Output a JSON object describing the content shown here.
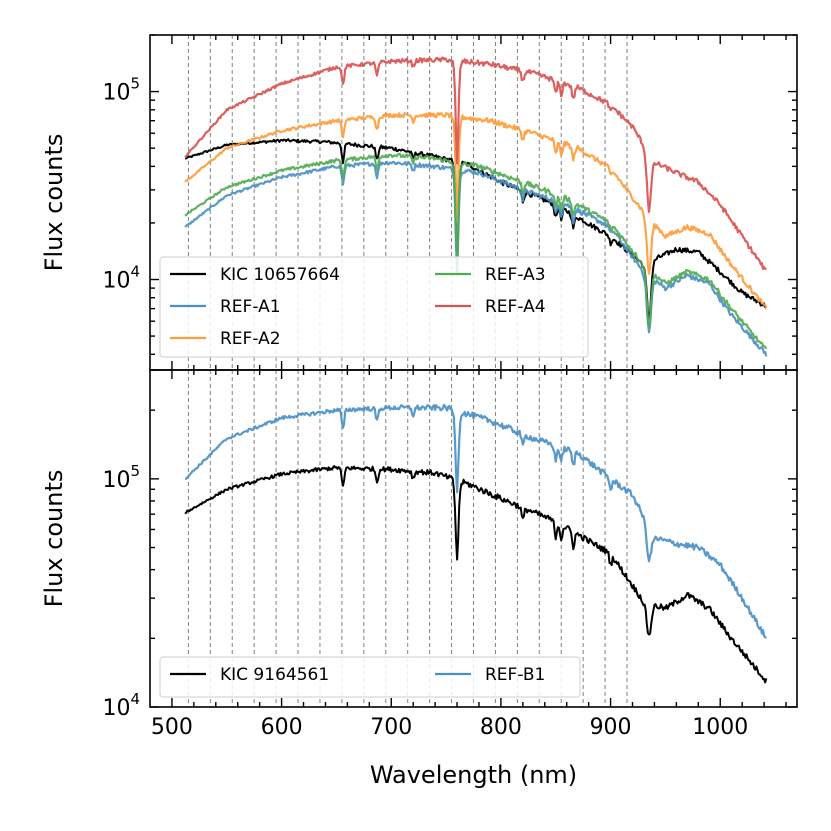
{
  "chart_data": [
    {
      "type": "line",
      "panel": "top",
      "xlabel": "",
      "ylabel": "Flux counts",
      "xlim": [
        480,
        1070
      ],
      "ylim": [
        3300,
        200000
      ],
      "yscale": "log",
      "x_ticks": [],
      "y_tick_labels": [
        {
          "value": 10000,
          "base": "10",
          "exp": "4"
        },
        {
          "value": 100000,
          "base": "10",
          "exp": "5"
        }
      ],
      "vlines": [
        515,
        535,
        555,
        575,
        595,
        615,
        635,
        655,
        675,
        695,
        715,
        735,
        755,
        775,
        795,
        815,
        835,
        855,
        875,
        895,
        915
      ],
      "legend_position": "lower-left",
      "legend_columns": 2,
      "series": [
        {
          "name": "KIC 10657664",
          "color": "#000000",
          "profile": [
            [
              512,
              44000
            ],
            [
              550,
              52000
            ],
            [
              600,
              55000
            ],
            [
              640,
              54000
            ],
            [
              700,
              50000
            ],
            [
              740,
              45000
            ],
            [
              770,
              41000
            ],
            [
              800,
              33000
            ],
            [
              850,
              25000
            ],
            [
              900,
              17000
            ],
            [
              930,
              12000
            ],
            [
              960,
              14500
            ],
            [
              980,
              14000
            ],
            [
              1000,
              11000
            ],
            [
              1020,
              8500
            ],
            [
              1042,
              7200
            ]
          ]
        },
        {
          "name": "REF-A1",
          "color": "#4a90c4",
          "profile": [
            [
              512,
              19000
            ],
            [
              550,
              28000
            ],
            [
              600,
              35000
            ],
            [
              650,
              40000
            ],
            [
              700,
              42000
            ],
            [
              740,
              40000
            ],
            [
              780,
              37000
            ],
            [
              820,
              30000
            ],
            [
              860,
              25000
            ],
            [
              900,
              19000
            ],
            [
              930,
              11000
            ],
            [
              950,
              9000
            ],
            [
              970,
              10500
            ],
            [
              990,
              9500
            ],
            [
              1010,
              6500
            ],
            [
              1042,
              4000
            ]
          ]
        },
        {
          "name": "REF-A2",
          "color": "#ff9c3a",
          "profile": [
            [
              512,
              33000
            ],
            [
              550,
              50000
            ],
            [
              600,
              62000
            ],
            [
              650,
              70000
            ],
            [
              700,
              75000
            ],
            [
              750,
              75000
            ],
            [
              790,
              70000
            ],
            [
              830,
              60000
            ],
            [
              870,
              50000
            ],
            [
              900,
              39000
            ],
            [
              930,
              23000
            ],
            [
              950,
              17000
            ],
            [
              970,
              19000
            ],
            [
              990,
              17500
            ],
            [
              1010,
              12000
            ],
            [
              1042,
              7000
            ]
          ]
        },
        {
          "name": "REF-A3",
          "color": "#52ab52",
          "profile": [
            [
              512,
              22000
            ],
            [
              550,
              31000
            ],
            [
              600,
              38000
            ],
            [
              650,
              43000
            ],
            [
              700,
              46000
            ],
            [
              740,
              44000
            ],
            [
              780,
              40000
            ],
            [
              820,
              33000
            ],
            [
              860,
              27000
            ],
            [
              900,
              20000
            ],
            [
              930,
              12000
            ],
            [
              950,
              9500
            ],
            [
              970,
              11000
            ],
            [
              990,
              10000
            ],
            [
              1010,
              7000
            ],
            [
              1042,
              4200
            ]
          ]
        },
        {
          "name": "REF-A4",
          "color": "#d9534f",
          "profile": [
            [
              512,
              45000
            ],
            [
              550,
              80000
            ],
            [
              600,
              110000
            ],
            [
              650,
              135000
            ],
            [
              700,
              145000
            ],
            [
              750,
              148000
            ],
            [
              790,
              140000
            ],
            [
              830,
              125000
            ],
            [
              870,
              105000
            ],
            [
              900,
              85000
            ],
            [
              920,
              65000
            ],
            [
              940,
              42000
            ],
            [
              960,
              37000
            ],
            [
              980,
              33000
            ],
            [
              1000,
              25000
            ],
            [
              1020,
              17000
            ],
            [
              1042,
              11000
            ]
          ]
        }
      ],
      "absorption_lines": [
        [
          656,
          0.8
        ],
        [
          687,
          0.85
        ],
        [
          720,
          0.93
        ],
        [
          760,
          0.28
        ],
        [
          820,
          0.88
        ],
        [
          850,
          0.85
        ],
        [
          855,
          0.86
        ],
        [
          866,
          0.85
        ],
        [
          900,
          0.92
        ],
        [
          935,
          0.5
        ]
      ]
    },
    {
      "type": "line",
      "panel": "bottom",
      "xlabel": "Wavelength (nm)",
      "ylabel": "Flux counts",
      "xlim": [
        480,
        1070
      ],
      "ylim": [
        10000,
        300000
      ],
      "yscale": "log",
      "x_tick_labels": [
        {
          "value": 500,
          "label": "500"
        },
        {
          "value": 600,
          "label": "600"
        },
        {
          "value": 700,
          "label": "700"
        },
        {
          "value": 800,
          "label": "800"
        },
        {
          "value": 900,
          "label": "900"
        },
        {
          "value": 1000,
          "label": "1000"
        }
      ],
      "y_tick_labels": [
        {
          "value": 10000,
          "base": "10",
          "exp": "4"
        },
        {
          "value": 100000,
          "base": "10",
          "exp": "5"
        }
      ],
      "vlines": [
        515,
        535,
        555,
        575,
        595,
        615,
        635,
        655,
        675,
        695,
        715,
        735,
        755,
        775,
        795,
        815,
        835,
        855,
        875,
        895,
        915
      ],
      "legend_position": "lower-left",
      "legend_columns": 2,
      "series": [
        {
          "name": "KIC 9164561",
          "color": "#000000",
          "profile": [
            [
              512,
              71000
            ],
            [
              550,
              90000
            ],
            [
              600,
              105000
            ],
            [
              650,
              112000
            ],
            [
              700,
              110000
            ],
            [
              740,
              106000
            ],
            [
              770,
              95000
            ],
            [
              800,
              82000
            ],
            [
              850,
              65000
            ],
            [
              900,
              47000
            ],
            [
              930,
              29000
            ],
            [
              950,
              27000
            ],
            [
              970,
              31000
            ],
            [
              990,
              27000
            ],
            [
              1010,
              20000
            ],
            [
              1042,
              13000
            ]
          ]
        },
        {
          "name": "REF-B1",
          "color": "#4a90c4",
          "profile": [
            [
              512,
              100000
            ],
            [
              550,
              150000
            ],
            [
              600,
              185000
            ],
            [
              650,
              200000
            ],
            [
              700,
              205000
            ],
            [
              750,
              205000
            ],
            [
              790,
              180000
            ],
            [
              830,
              150000
            ],
            [
              870,
              130000
            ],
            [
              900,
              100000
            ],
            [
              920,
              85000
            ],
            [
              940,
              55000
            ],
            [
              960,
              52000
            ],
            [
              980,
              50000
            ],
            [
              1000,
              42000
            ],
            [
              1020,
              30000
            ],
            [
              1042,
              20000
            ]
          ]
        }
      ],
      "absorption_lines": [
        [
          656,
          0.82
        ],
        [
          687,
          0.88
        ],
        [
          720,
          0.93
        ],
        [
          760,
          0.45
        ],
        [
          820,
          0.88
        ],
        [
          850,
          0.86
        ],
        [
          855,
          0.87
        ],
        [
          866,
          0.86
        ],
        [
          900,
          0.9
        ],
        [
          935,
          0.72
        ]
      ]
    }
  ]
}
